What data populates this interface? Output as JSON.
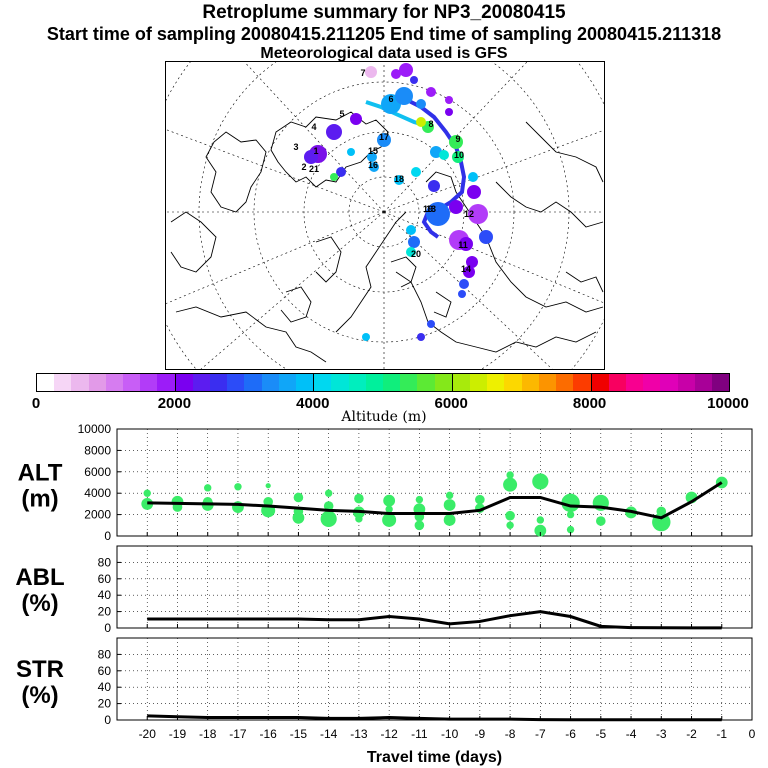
{
  "title": "Retroplume summary for NP3_20080415",
  "subtitle": "Start time of sampling 20080415.211205     End time of sampling 20080415.211318",
  "met_line": "Meteorological data used is GFS",
  "colorbar": {
    "title": "Altitude (m)",
    "tick_labels": [
      "0",
      "2000",
      "4000",
      "6000",
      "8000",
      "10000"
    ],
    "colors": [
      "#ffffff",
      "#f6d6f6",
      "#ecb8ee",
      "#e29ae8",
      "#d67cf0",
      "#c85ef6",
      "#b23cf8",
      "#9c1cf8",
      "#7a00f0",
      "#5c1cf0",
      "#3a2ef0",
      "#2c4cf8",
      "#1e6cf8",
      "#1a8cf8",
      "#10a6f8",
      "#00c0f8",
      "#00d8f0",
      "#00e6d8",
      "#00eebe",
      "#00f09c",
      "#10ee7c",
      "#34ec58",
      "#5cea34",
      "#84e81a",
      "#a8ea0c",
      "#ccee00",
      "#eef000",
      "#fcd800",
      "#fcb800",
      "#fc9400",
      "#fc6c00",
      "#fc3c00",
      "#f00000",
      "#f80060",
      "#f80090",
      "#f000a8",
      "#e000b8",
      "#c800a8",
      "#a80098",
      "#800080"
    ]
  },
  "map": {
    "trajectory_labels": [
      "1",
      "2",
      "3",
      "4",
      "5",
      "6",
      "7",
      "8",
      "9",
      "10",
      "11",
      "12",
      "13",
      "14",
      "15",
      "16",
      "17",
      "18",
      "19",
      "20",
      "21"
    ]
  },
  "chart_data": [
    {
      "type": "line",
      "panel": "ALT",
      "ylabel": "ALT (m)",
      "ylim": [
        0,
        10000
      ],
      "yticks": [
        "10000",
        "8000",
        "6000",
        "4000",
        "2000",
        "0"
      ],
      "x": [
        -20,
        -19,
        -18,
        -17,
        -16,
        -15,
        -14,
        -13,
        -12,
        -11,
        -10,
        -9,
        -8,
        -7,
        -6,
        -5,
        -4,
        -3,
        -2,
        -1
      ],
      "median": [
        3100,
        3050,
        3000,
        2950,
        2800,
        2600,
        2400,
        2300,
        2100,
        2100,
        2100,
        2400,
        3600,
        3600,
        2800,
        2700,
        2300,
        1700,
        3200,
        5000
      ],
      "cluster_points": [
        {
          "x": -20,
          "y": 3000,
          "s": 4
        },
        {
          "x": -20,
          "y": 4000,
          "s": 2
        },
        {
          "x": -19,
          "y": 3200,
          "s": 4
        },
        {
          "x": -19,
          "y": 2700,
          "s": 3
        },
        {
          "x": -18,
          "y": 2900,
          "s": 4
        },
        {
          "x": -18,
          "y": 4500,
          "s": 2
        },
        {
          "x": -18,
          "y": 3200,
          "s": 3
        },
        {
          "x": -17,
          "y": 2700,
          "s": 4
        },
        {
          "x": -17,
          "y": 4600,
          "s": 2
        },
        {
          "x": -16,
          "y": 2400,
          "s": 5
        },
        {
          "x": -16,
          "y": 3200,
          "s": 3
        },
        {
          "x": -16,
          "y": 4700,
          "s": 1
        },
        {
          "x": -15,
          "y": 1700,
          "s": 4
        },
        {
          "x": -15,
          "y": 2300,
          "s": 3
        },
        {
          "x": -15,
          "y": 3600,
          "s": 3
        },
        {
          "x": -14,
          "y": 1600,
          "s": 6
        },
        {
          "x": -14,
          "y": 2800,
          "s": 3
        },
        {
          "x": -14,
          "y": 4000,
          "s": 2
        },
        {
          "x": -13,
          "y": 2200,
          "s": 4
        },
        {
          "x": -13,
          "y": 3500,
          "s": 3
        },
        {
          "x": -13,
          "y": 1600,
          "s": 2
        },
        {
          "x": -12,
          "y": 1500,
          "s": 5
        },
        {
          "x": -12,
          "y": 3300,
          "s": 4
        },
        {
          "x": -12,
          "y": 2500,
          "s": 2
        },
        {
          "x": -11,
          "y": 2500,
          "s": 4
        },
        {
          "x": -11,
          "y": 1000,
          "s": 3
        },
        {
          "x": -11,
          "y": 1800,
          "s": 3
        },
        {
          "x": -11,
          "y": 3400,
          "s": 2
        },
        {
          "x": -10,
          "y": 1500,
          "s": 4
        },
        {
          "x": -10,
          "y": 2900,
          "s": 4
        },
        {
          "x": -10,
          "y": 3800,
          "s": 2
        },
        {
          "x": -9,
          "y": 2600,
          "s": 3
        },
        {
          "x": -9,
          "y": 3400,
          "s": 3
        },
        {
          "x": -8,
          "y": 4800,
          "s": 5
        },
        {
          "x": -8,
          "y": 1900,
          "s": 3
        },
        {
          "x": -8,
          "y": 5700,
          "s": 2
        },
        {
          "x": -8,
          "y": 1000,
          "s": 2
        },
        {
          "x": -7,
          "y": 5100,
          "s": 6
        },
        {
          "x": -7,
          "y": 500,
          "s": 4
        },
        {
          "x": -7,
          "y": 1500,
          "s": 2
        },
        {
          "x": -6,
          "y": 3100,
          "s": 7
        },
        {
          "x": -6,
          "y": 2000,
          "s": 2
        },
        {
          "x": -6,
          "y": 600,
          "s": 2
        },
        {
          "x": -5,
          "y": 3100,
          "s": 6
        },
        {
          "x": -5,
          "y": 1400,
          "s": 3
        },
        {
          "x": -4,
          "y": 2200,
          "s": 4
        },
        {
          "x": -3,
          "y": 1300,
          "s": 7
        },
        {
          "x": -3,
          "y": 2300,
          "s": 3
        },
        {
          "x": -2,
          "y": 3600,
          "s": 4
        },
        {
          "x": -1,
          "y": 5000,
          "s": 4
        }
      ]
    },
    {
      "type": "line",
      "panel": "ABL",
      "ylabel": "ABL (%)",
      "ylim": [
        0,
        100
      ],
      "yticks": [
        "80",
        "60",
        "40",
        "20",
        "0"
      ],
      "x": [
        -20,
        -19,
        -18,
        -17,
        -16,
        -15,
        -14,
        -13,
        -12,
        -11,
        -10,
        -9,
        -8,
        -7,
        -6,
        -5,
        -4,
        -3,
        -2,
        -1
      ],
      "values": [
        11,
        11,
        11,
        11,
        11,
        11,
        10,
        10,
        14,
        11,
        5,
        8,
        15,
        20,
        14,
        2,
        0.5,
        0.3,
        0.2,
        0.1
      ]
    },
    {
      "type": "line",
      "panel": "STR",
      "ylabel": "STR (%)",
      "ylim": [
        0,
        100
      ],
      "yticks": [
        "80",
        "60",
        "40",
        "20",
        "0"
      ],
      "x": [
        -20,
        -19,
        -18,
        -17,
        -16,
        -15,
        -14,
        -13,
        -12,
        -11,
        -10,
        -9,
        -8,
        -7,
        -6,
        -5,
        -4,
        -3,
        -2,
        -1
      ],
      "values": [
        5,
        4,
        3,
        3,
        3,
        3,
        2,
        2,
        3,
        2,
        1,
        1,
        1,
        0.5,
        0.3,
        0.3,
        0.3,
        0.3,
        0.3,
        0.3
      ],
      "xlabel": "Travel time (days)",
      "xtick_labels": [
        "-20",
        "-19",
        "-18",
        "-17",
        "-16",
        "-15",
        "-14",
        "-13",
        "-12",
        "-11",
        "-10",
        "-9",
        "-8",
        "-7",
        "-6",
        "-5",
        "-4",
        "-3",
        "-2",
        "-1",
        "0"
      ]
    }
  ],
  "colors": {
    "median_line": "#000000",
    "cluster_points": "#3aec68",
    "trajectory_path": "#2c6cf8"
  }
}
